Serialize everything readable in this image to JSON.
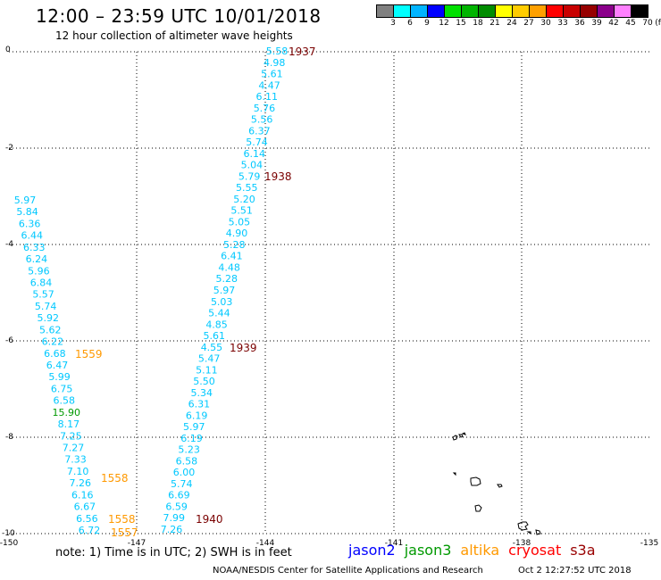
{
  "title": "12:00 – 23:59 UTC 10/01/2018",
  "subtitle": "12 hour collection of altimeter wave heights",
  "scale": {
    "labels": [
      "3",
      "6",
      "9",
      "12",
      "15",
      "18",
      "21",
      "24",
      "27",
      "30",
      "33",
      "36",
      "39",
      "42",
      "45",
      "70"
    ],
    "unit": "(ft)",
    "colors": [
      "#808080",
      "#00ffff",
      "#00b4ff",
      "#0000ff",
      "#00e000",
      "#00b400",
      "#008c00",
      "#ffff00",
      "#ffcc00",
      "#ffa000",
      "#ff0000",
      "#c80000",
      "#960000",
      "#8b008b",
      "#ff80ff",
      "#000000"
    ]
  },
  "axes": {
    "x_ticks": [
      "-150",
      "-147",
      "-144",
      "-141",
      "-138",
      "-135"
    ],
    "y_ticks": [
      "0",
      "-2",
      "-4",
      "-6",
      "-8",
      "-10"
    ]
  },
  "time_labels": [
    {
      "text": "1937",
      "color": "#7a0000"
    },
    {
      "text": "1938",
      "color": "#7a0000"
    },
    {
      "text": "1939",
      "color": "#7a0000"
    },
    {
      "text": "1940",
      "color": "#7a0000"
    },
    {
      "text": "1559",
      "color": "#ff9900"
    },
    {
      "text": "1558",
      "color": "#ff9900"
    },
    {
      "text": "1558",
      "color": "#ff9900"
    },
    {
      "text": "1557",
      "color": "#ff9900"
    }
  ],
  "track_a": [
    "5.58",
    "4.98",
    "5.61",
    "4.47",
    "6.11",
    "5.76",
    "5.56",
    "6.37",
    "5.74",
    "6.14",
    "5.04",
    "5.79",
    "5.55",
    "5.20",
    "5.51",
    "5.05",
    "4.90",
    "5.28",
    "6.41",
    "4.48",
    "5.28",
    "5.97",
    "5.03",
    "5.44",
    "4.85",
    "5.61",
    "4.55",
    "5.47",
    "5.11",
    "5.50",
    "5.34",
    "6.31",
    "6.19",
    "5.97",
    "6.19",
    "5.23",
    "6.58",
    "6.00",
    "5.74",
    "6.69",
    "6.59",
    "7.99",
    "7.26"
  ],
  "track_b": [
    "5.97",
    "5.84",
    "6.36",
    "6.44",
    "6.33",
    "6.24",
    "5.96",
    "6.84",
    "5.57",
    "5.74",
    "5.92",
    "5.62",
    "6.22",
    "6.68",
    "6.47",
    "5.99",
    "6.75",
    "6.58",
    "15.90",
    "8.17",
    "7.25",
    "7.27",
    "7.33",
    "7.10",
    "7.26",
    "6.16",
    "6.67",
    "6.56",
    "6.72"
  ],
  "notes": {
    "note": "note:  1) Time is in UTC;  2) SWH is in feet",
    "credit": "NOAA/NESDIS Center for Satellite Applications and Research",
    "timestamp": "Oct  2 12:27:52 UTC 2018"
  },
  "satellites": [
    {
      "name": "jason2",
      "color": "#0000ff"
    },
    {
      "name": "jason3",
      "color": "#009900"
    },
    {
      "name": "altika",
      "color": "#ff9900"
    },
    {
      "name": "cryosat",
      "color": "#ff0000"
    },
    {
      "name": "s3a",
      "color": "#990000"
    }
  ]
}
